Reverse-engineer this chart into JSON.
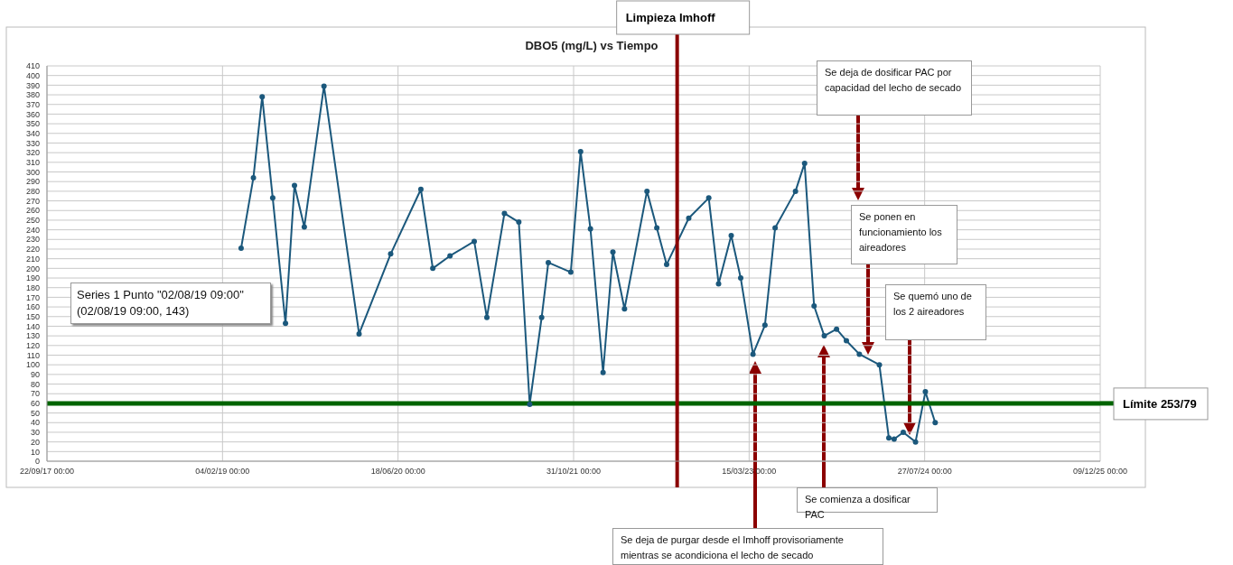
{
  "chart_data": {
    "type": "line",
    "title": "DBO5 (mg/L) vs Tiempo",
    "x": [
      "2019-03-29",
      "2019-05-03",
      "2019-05-28",
      "2019-06-27",
      "2019-08-02T09:00",
      "2019-08-28",
      "2019-09-25",
      "2019-11-20",
      "2020-02-28",
      "2020-05-28",
      "2020-08-22",
      "2020-09-25",
      "2020-11-13",
      "2021-01-21",
      "2021-02-26",
      "2021-04-17",
      "2021-05-28",
      "2021-06-28",
      "2021-08-01",
      "2021-08-20",
      "2021-10-23",
      "2021-11-20",
      "2021-12-18",
      "2022-01-23",
      "2022-02-20",
      "2022-03-25",
      "2022-05-28",
      "2022-06-25",
      "2022-07-23",
      "2022-09-24",
      "2022-11-20",
      "2022-12-18",
      "2023-01-23",
      "2023-02-19",
      "2023-03-26",
      "2023-04-29",
      "2023-05-28",
      "2023-07-25",
      "2023-08-20",
      "2023-09-16",
      "2023-10-15",
      "2023-11-19",
      "2023-12-17",
      "2024-01-23",
      "2024-03-20",
      "2024-04-16",
      "2024-05-01",
      "2024-05-27",
      "2024-07-01",
      "2024-07-29",
      "2024-08-26"
    ],
    "series": [
      {
        "color": "#1b587c",
        "values": [
          221,
          294,
          378,
          273,
          143,
          286,
          243,
          389,
          132,
          215,
          282,
          200,
          213,
          228,
          149,
          257,
          248,
          59,
          149,
          206,
          196,
          321,
          241,
          92,
          217,
          158,
          280,
          242,
          204,
          252,
          273,
          184,
          234,
          190,
          111,
          141,
          242,
          280,
          309,
          161,
          130,
          137,
          125,
          111,
          100,
          24,
          23,
          30,
          20,
          72,
          40
        ]
      }
    ],
    "xlim": [
      "2017-09-22",
      "2025-12-09"
    ],
    "xticks": [
      {
        "value": "2017-09-22",
        "label": "22/09/17 00:00"
      },
      {
        "value": "2019-02-04",
        "label": "04/02/19 00:00"
      },
      {
        "value": "2020-06-18",
        "label": "18/06/20 00:00"
      },
      {
        "value": "2021-10-31",
        "label": "31/10/21 00:00"
      },
      {
        "value": "2023-03-15",
        "label": "15/03/23 00:00"
      },
      {
        "value": "2024-07-27",
        "label": "27/07/24 00:00"
      },
      {
        "value": "2025-12-09",
        "label": "09/12/25 00:00"
      }
    ],
    "ylim": [
      0,
      410
    ],
    "yticks": [
      0,
      10,
      20,
      30,
      40,
      50,
      60,
      70,
      80,
      90,
      100,
      110,
      120,
      130,
      140,
      150,
      160,
      170,
      180,
      190,
      200,
      210,
      220,
      230,
      240,
      250,
      260,
      270,
      280,
      290,
      300,
      310,
      320,
      330,
      340,
      350,
      360,
      370,
      380,
      390,
      400,
      410
    ],
    "grid": true,
    "marker": "circle",
    "line_style": "solid",
    "ref_lines": [
      {
        "axis": "y",
        "value": 60,
        "label": "Límite 253/79",
        "color": "#006400"
      },
      {
        "axis": "x",
        "value": "2022-08-22",
        "label": "Limpieza Imhoff",
        "color": "#8b0000"
      }
    ],
    "annotations": [
      "Series 1 Punto \"02/08/19 09:00\"\n(02/08/19 09:00, 143)",
      "Se deja de purgar desde el Imhoff provisoriamente mientras se acondiciona el lecho de secado",
      "Se comienza a dosificar PAC",
      "Se deja de dosificar PAC por capacidad del lecho de secado",
      "Se ponen en funcionamiento los aireadores",
      "Se quemó uno de los 2 aireadores"
    ]
  }
}
